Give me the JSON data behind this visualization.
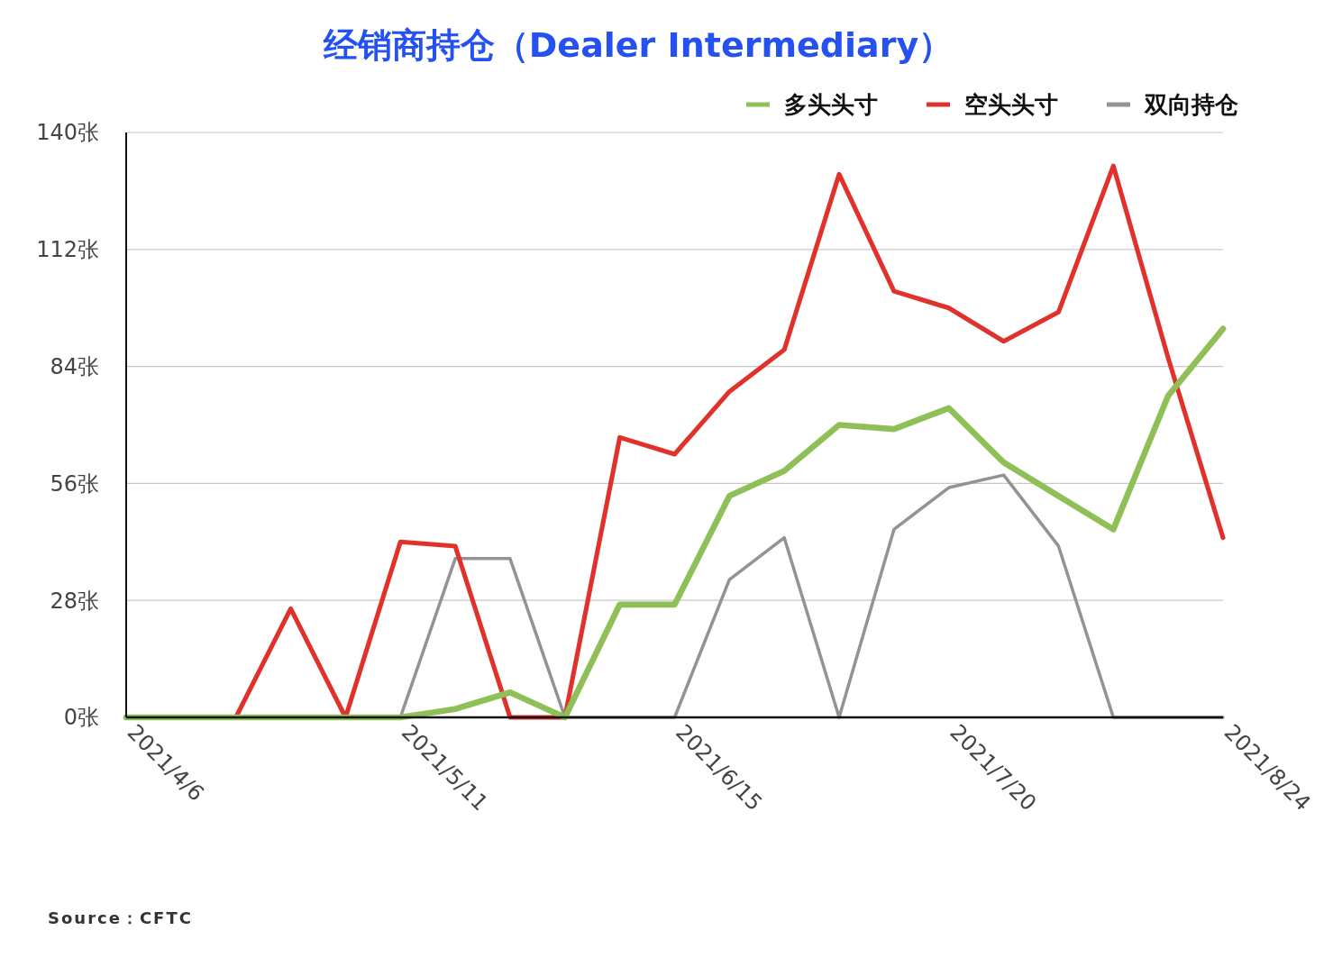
{
  "chart_data": {
    "type": "line",
    "title": "经销商持仓（Dealer Intermediary）",
    "x": [
      "2021-04-06",
      "2021-04-13",
      "2021-04-20",
      "2021-04-27",
      "2021-05-04",
      "2021-05-11",
      "2021-05-18",
      "2021-05-25",
      "2021-06-01",
      "2021-06-08",
      "2021-06-15",
      "2021-06-22",
      "2021-06-29",
      "2021-07-06",
      "2021-07-13",
      "2021-07-20",
      "2021-07-27",
      "2021-08-03",
      "2021-08-10",
      "2021-08-17",
      "2021-08-24"
    ],
    "series": [
      {
        "name": "多头头寸",
        "color": "#8fbf57",
        "values": [
          0,
          0,
          0,
          0,
          0,
          0,
          2,
          6,
          0,
          27,
          27,
          53,
          59,
          70,
          69,
          74,
          61,
          53,
          45,
          77,
          93
        ]
      },
      {
        "name": "空头头寸",
        "color": "#e0312a",
        "values": [
          0,
          0,
          0,
          26,
          0,
          42,
          41,
          0,
          0,
          67,
          63,
          78,
          88,
          130,
          102,
          98,
          90,
          97,
          132,
          86,
          43
        ]
      },
      {
        "name": "双向持仓",
        "color": "#939393",
        "values": [
          0,
          0,
          0,
          0,
          0,
          0,
          38,
          38,
          0,
          0,
          0,
          33,
          43,
          0,
          45,
          55,
          58,
          41,
          0,
          0,
          0
        ]
      }
    ],
    "xlim": [
      "2021-04-06",
      "2021-08-24"
    ],
    "xticks": [
      {
        "value": "2021-04-06",
        "label": "2021/4/6"
      },
      {
        "value": "2021-05-11",
        "label": "2021/5/11"
      },
      {
        "value": "2021-06-15",
        "label": "2021/6/15"
      },
      {
        "value": "2021-07-20",
        "label": "2021/7/20"
      },
      {
        "value": "2021-08-24",
        "label": "2021/8/24"
      }
    ],
    "ylim": [
      0,
      140
    ],
    "yticks": [
      {
        "value": 0,
        "label": "0张"
      },
      {
        "value": 28,
        "label": "28张"
      },
      {
        "value": 56,
        "label": "56张"
      },
      {
        "value": 84,
        "label": "84张"
      },
      {
        "value": 112,
        "label": "112张"
      },
      {
        "value": 140,
        "label": "140张"
      }
    ],
    "grid": "y",
    "legend": "top right",
    "marker": "none",
    "line_style": "solid",
    "annotations": [
      "Source：CFTC"
    ]
  }
}
